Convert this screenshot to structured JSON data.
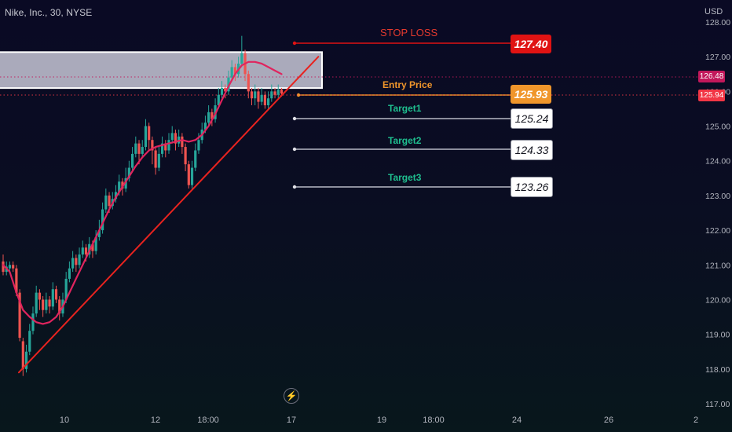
{
  "header": {
    "symbol_title": "Nike, Inc., 30, NYSE",
    "currency": "USD"
  },
  "colors": {
    "up": "#26a69a",
    "down": "#ef5350",
    "trendline": "#e8231f",
    "moving_average": "#e0245e",
    "stop_loss": "#e01313",
    "entry": "#f0962b",
    "target_text": "#1fbf8f",
    "target_line": "#b8bac4",
    "zone_fill": "#b8b9c9",
    "zone_border": "#ffffff"
  },
  "chart_data": {
    "type": "candlestick",
    "symbol": "Nike, Inc.",
    "interval": "30",
    "exchange": "NYSE",
    "y_axis": {
      "side": "right",
      "range": [
        116.8,
        128.2
      ],
      "ticks": [
        "128.00",
        "127.00",
        "126.00",
        "125.00",
        "124.00",
        "123.00",
        "122.00",
        "121.00",
        "120.00",
        "119.00",
        "118.00",
        "117.00"
      ]
    },
    "x_axis": {
      "ticks": [
        "10",
        "12",
        "18:00",
        "17",
        "19",
        "18:00",
        "24",
        "26",
        "2"
      ]
    },
    "price_badges": [
      {
        "value": "126.48",
        "color": "#c2185b"
      },
      {
        "value": "125.94",
        "color": "#f23645"
      }
    ],
    "trade_levels": {
      "stop_loss": {
        "label": "STOP LOSS",
        "value": "127.40"
      },
      "entry": {
        "label": "Entry Price",
        "value": "125.93"
      },
      "targets": [
        {
          "label": "Target1",
          "value": "125.24"
        },
        {
          "label": "Target2",
          "value": "124.33"
        },
        {
          "label": "Target3",
          "value": "123.26"
        }
      ]
    },
    "resistance_zone": {
      "from": 126.3,
      "to": 127.2
    },
    "trendline": {
      "from": [
        0,
        117.9
      ],
      "to": [
        88,
        127.0
      ]
    },
    "candles": [
      [
        121.1,
        120.8,
        121.3,
        120.7
      ],
      [
        120.8,
        120.95,
        121.1,
        120.7
      ],
      [
        120.9,
        121.0,
        121.1,
        120.8
      ],
      [
        121.0,
        120.9,
        121.1,
        120.8
      ],
      [
        120.9,
        120.2,
        121.0,
        120.1
      ],
      [
        120.2,
        118.9,
        120.3,
        118.8
      ],
      [
        118.8,
        118.0,
        118.9,
        117.8
      ],
      [
        118.0,
        118.5,
        118.7,
        117.9
      ],
      [
        118.5,
        119.1,
        119.3,
        118.4
      ],
      [
        119.1,
        119.6,
        119.8,
        119.0
      ],
      [
        119.6,
        120.2,
        120.4,
        119.5
      ],
      [
        120.2,
        120.0,
        120.3,
        119.7
      ],
      [
        120.0,
        119.7,
        120.1,
        119.5
      ],
      [
        119.7,
        120.0,
        120.2,
        119.6
      ],
      [
        120.0,
        119.8,
        120.1,
        119.6
      ],
      [
        119.8,
        120.3,
        120.5,
        119.7
      ],
      [
        120.3,
        120.0,
        120.4,
        119.9
      ],
      [
        120.0,
        119.6,
        120.1,
        119.4
      ],
      [
        119.6,
        120.0,
        120.2,
        119.5
      ],
      [
        120.0,
        120.6,
        120.8,
        119.9
      ],
      [
        120.6,
        120.9,
        121.1,
        120.5
      ],
      [
        120.9,
        121.2,
        121.4,
        120.8
      ],
      [
        121.2,
        121.0,
        121.3,
        120.8
      ],
      [
        121.0,
        121.3,
        121.5,
        120.9
      ],
      [
        121.3,
        121.5,
        121.7,
        121.2
      ],
      [
        121.5,
        121.3,
        121.6,
        121.1
      ],
      [
        121.3,
        121.6,
        121.8,
        121.2
      ],
      [
        121.6,
        121.4,
        121.7,
        121.2
      ],
      [
        121.4,
        121.8,
        122.0,
        121.3
      ],
      [
        121.8,
        122.0,
        122.3,
        121.7
      ],
      [
        122.0,
        122.6,
        122.8,
        121.9
      ],
      [
        122.6,
        123.0,
        123.2,
        122.5
      ],
      [
        123.0,
        122.7,
        123.1,
        122.5
      ],
      [
        122.7,
        122.9,
        123.1,
        122.6
      ],
      [
        122.9,
        123.1,
        123.3,
        122.8
      ],
      [
        123.1,
        123.4,
        123.6,
        123.0
      ],
      [
        123.4,
        123.2,
        123.5,
        123.0
      ],
      [
        123.2,
        123.5,
        123.8,
        123.1
      ],
      [
        123.5,
        123.8,
        124.0,
        123.4
      ],
      [
        123.8,
        124.2,
        124.4,
        123.7
      ],
      [
        124.2,
        124.5,
        124.7,
        124.1
      ],
      [
        124.5,
        124.2,
        124.6,
        123.9
      ],
      [
        124.2,
        124.4,
        124.6,
        124.1
      ],
      [
        124.4,
        125.0,
        125.2,
        124.3
      ],
      [
        125.0,
        124.6,
        125.1,
        124.3
      ],
      [
        124.6,
        124.3,
        124.7,
        123.9
      ],
      [
        124.3,
        123.8,
        124.4,
        123.6
      ],
      [
        123.8,
        124.2,
        124.4,
        123.7
      ],
      [
        124.2,
        124.5,
        124.7,
        124.1
      ],
      [
        124.5,
        124.3,
        124.6,
        124.1
      ],
      [
        124.3,
        124.6,
        124.8,
        124.2
      ],
      [
        124.6,
        124.8,
        125.0,
        124.5
      ],
      [
        124.8,
        124.5,
        124.9,
        124.3
      ],
      [
        124.5,
        124.7,
        124.9,
        124.4
      ],
      [
        124.7,
        124.4,
        124.8,
        124.2
      ],
      [
        124.4,
        123.9,
        124.5,
        123.7
      ],
      [
        123.9,
        123.3,
        124.0,
        123.2
      ],
      [
        123.3,
        123.8,
        124.0,
        123.2
      ],
      [
        123.8,
        124.3,
        124.5,
        123.7
      ],
      [
        124.3,
        124.6,
        124.8,
        124.2
      ],
      [
        124.6,
        124.9,
        125.1,
        124.5
      ],
      [
        124.9,
        125.1,
        125.3,
        124.8
      ],
      [
        125.1,
        125.4,
        125.6,
        125.0
      ],
      [
        125.4,
        125.2,
        125.5,
        125.0
      ],
      [
        125.2,
        125.6,
        125.8,
        125.1
      ],
      [
        125.6,
        125.9,
        126.1,
        125.5
      ],
      [
        125.9,
        126.1,
        126.3,
        125.8
      ],
      [
        126.1,
        126.0,
        126.2,
        125.8
      ],
      [
        126.0,
        126.4,
        126.6,
        125.9
      ],
      [
        126.4,
        126.7,
        126.9,
        126.3
      ],
      [
        126.7,
        126.5,
        126.8,
        126.3
      ],
      [
        126.5,
        126.8,
        127.0,
        126.4
      ],
      [
        126.8,
        127.1,
        127.6,
        126.7
      ],
      [
        127.1,
        126.5,
        127.2,
        126.3
      ],
      [
        126.5,
        126.0,
        126.6,
        125.8
      ],
      [
        126.0,
        125.8,
        126.1,
        125.6
      ],
      [
        125.8,
        126.0,
        126.2,
        125.6
      ],
      [
        126.0,
        125.7,
        126.1,
        125.5
      ],
      [
        125.7,
        125.9,
        126.1,
        125.6
      ],
      [
        125.9,
        125.6,
        126.0,
        125.5
      ],
      [
        125.6,
        125.8,
        126.0,
        125.5
      ],
      [
        125.8,
        126.0,
        126.2,
        125.7
      ],
      [
        126.0,
        125.9,
        126.1,
        125.8
      ],
      [
        125.9,
        126.05,
        126.2,
        125.8
      ],
      [
        126.05,
        125.94,
        126.1,
        125.85
      ]
    ],
    "moving_average": [
      [
        0,
        121.0
      ],
      [
        2,
        120.8
      ],
      [
        4,
        120.2
      ],
      [
        6,
        119.7
      ],
      [
        8,
        119.5
      ],
      [
        10,
        119.35
      ],
      [
        12,
        119.3
      ],
      [
        14,
        119.35
      ],
      [
        16,
        119.5
      ],
      [
        18,
        119.8
      ],
      [
        20,
        120.2
      ],
      [
        22,
        120.6
      ],
      [
        24,
        121.0
      ],
      [
        26,
        121.4
      ],
      [
        28,
        121.8
      ],
      [
        30,
        122.2
      ],
      [
        32,
        122.6
      ],
      [
        34,
        122.95
      ],
      [
        36,
        123.25
      ],
      [
        38,
        123.55
      ],
      [
        40,
        123.85
      ],
      [
        42,
        124.1
      ],
      [
        44,
        124.3
      ],
      [
        46,
        124.4
      ],
      [
        48,
        124.45
      ],
      [
        50,
        124.5
      ],
      [
        52,
        124.55
      ],
      [
        54,
        124.6
      ],
      [
        56,
        124.55
      ],
      [
        58,
        124.6
      ],
      [
        60,
        124.75
      ],
      [
        62,
        125.0
      ],
      [
        64,
        125.35
      ],
      [
        66,
        125.75
      ],
      [
        68,
        126.15
      ],
      [
        70,
        126.5
      ],
      [
        72,
        126.75
      ],
      [
        74,
        126.85
      ],
      [
        76,
        126.85
      ],
      [
        78,
        126.8
      ],
      [
        80,
        126.7
      ],
      [
        82,
        126.6
      ],
      [
        84,
        126.5
      ]
    ]
  }
}
